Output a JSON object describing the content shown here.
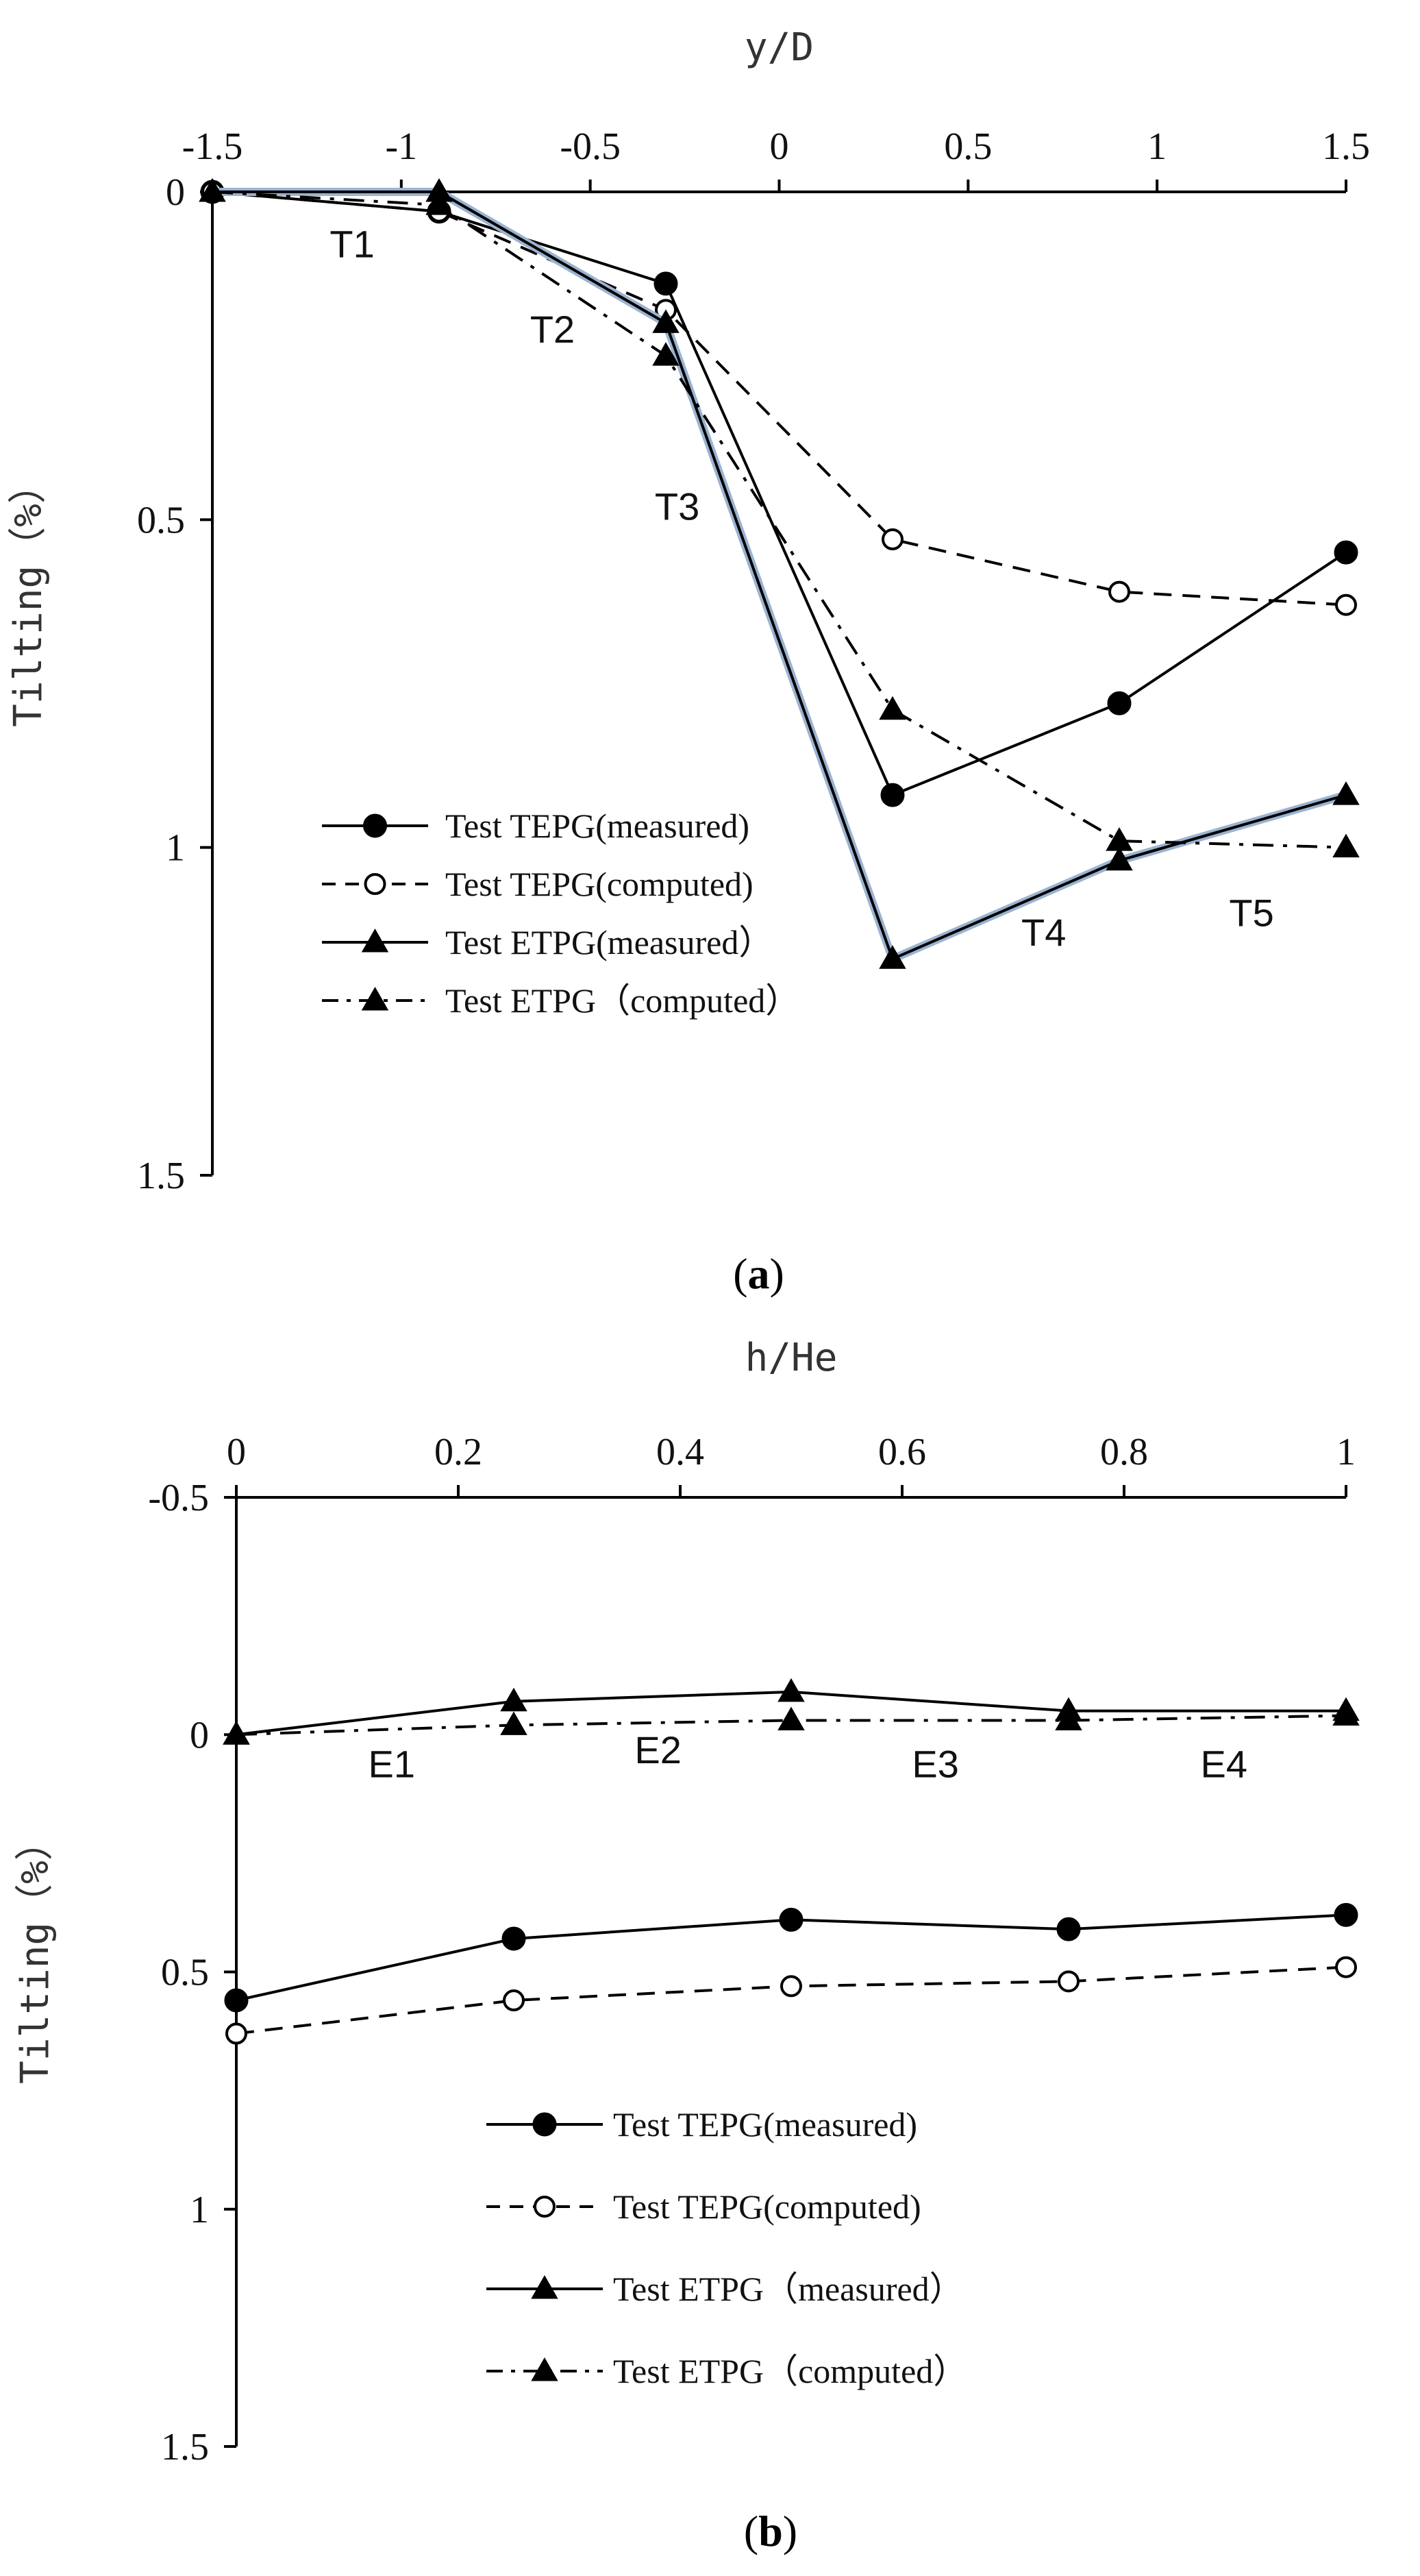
{
  "chart_data": [
    {
      "panel": "a",
      "panel_label": {
        "open": "(",
        "letter": "a",
        "close": ")"
      },
      "type": "line",
      "xlabel": "y/D",
      "ylabel": "Tilting（%）",
      "xlim": [
        -1.5,
        1.5
      ],
      "ylim": [
        0,
        1.5
      ],
      "y_inverted": true,
      "x_axis_position": "top",
      "grid": false,
      "x_ticks": [
        -1.5,
        -1,
        -0.5,
        0,
        0.5,
        1,
        1.5
      ],
      "x_tick_labels": [
        "-1.5",
        "-1",
        "-0.5",
        "0",
        "0.5",
        "1",
        "1.5"
      ],
      "y_ticks": [
        0,
        0.5,
        1,
        1.5
      ],
      "y_tick_labels": [
        "0",
        "0.5",
        "1",
        "1.5"
      ],
      "series": [
        {
          "name": "Test TEPG(measured)",
          "style": "solid",
          "marker": "filled-circle",
          "color": "#000000",
          "x": [
            -1.5,
            -0.9,
            -0.3,
            0.3,
            0.9,
            1.5
          ],
          "y": [
            0.0,
            0.03,
            0.14,
            0.92,
            0.78,
            0.55
          ]
        },
        {
          "name": "Test TEPG(computed)",
          "style": "dashed",
          "marker": "open-circle",
          "color": "#000000",
          "x": [
            -1.5,
            -0.9,
            -0.3,
            0.3,
            0.9,
            1.5
          ],
          "y": [
            0.0,
            0.03,
            0.18,
            0.53,
            0.61,
            0.63
          ]
        },
        {
          "name": "Test ETPG(measured）",
          "style": "solid",
          "marker": "filled-triangle",
          "color": "#000000",
          "x": [
            -1.5,
            -0.9,
            -0.3,
            0.3,
            0.9,
            1.5
          ],
          "y": [
            0.0,
            0.0,
            0.2,
            1.17,
            1.02,
            0.92
          ]
        },
        {
          "name": "Test ETPG（computed）",
          "style": "dashdot",
          "marker": "filled-triangle",
          "color": "#000000",
          "x": [
            -1.5,
            -0.9,
            -0.3,
            0.3,
            0.9,
            1.5
          ],
          "y": [
            0.0,
            0.02,
            0.25,
            0.79,
            0.99,
            1.0
          ]
        }
      ],
      "annotations": [
        {
          "text": "T1",
          "x": -1.13,
          "y": 0.1
        },
        {
          "text": "T2",
          "x": -0.6,
          "y": 0.23
        },
        {
          "text": "T3",
          "x": -0.27,
          "y": 0.5
        },
        {
          "text": "T4",
          "x": 0.7,
          "y": 1.15
        },
        {
          "text": "T5",
          "x": 1.25,
          "y": 1.12
        }
      ],
      "legend_position": "lower-left"
    },
    {
      "panel": "b",
      "panel_label": {
        "open": "(",
        "letter": "b",
        "close": ")"
      },
      "type": "line",
      "xlabel": "h/He",
      "ylabel": "Tilting（%）",
      "xlim": [
        0,
        1
      ],
      "ylim": [
        -0.5,
        1.5
      ],
      "y_inverted": true,
      "x_axis_position": "top",
      "grid": false,
      "x_ticks": [
        0,
        0.2,
        0.4,
        0.6,
        0.8,
        1
      ],
      "x_tick_labels": [
        "0",
        "0.2",
        "0.4",
        "0.6",
        "0.8",
        "1"
      ],
      "y_ticks": [
        -0.5,
        0,
        0.5,
        1,
        1.5
      ],
      "y_tick_labels": [
        "-0.5",
        "0",
        "0.5",
        "1",
        "1.5"
      ],
      "series": [
        {
          "name": "Test TEPG(measured)",
          "style": "solid",
          "marker": "filled-circle",
          "color": "#000000",
          "x": [
            0,
            0.25,
            0.5,
            0.75,
            1.0
          ],
          "y": [
            0.56,
            0.43,
            0.39,
            0.41,
            0.38
          ]
        },
        {
          "name": "Test TEPG(computed)",
          "style": "dashed",
          "marker": "open-circle",
          "color": "#000000",
          "x": [
            0,
            0.25,
            0.5,
            0.75,
            1.0
          ],
          "y": [
            0.63,
            0.56,
            0.53,
            0.52,
            0.49
          ]
        },
        {
          "name": "Test ETPG（measured）",
          "style": "solid",
          "marker": "filled-triangle",
          "color": "#000000",
          "x": [
            0,
            0.25,
            0.5,
            0.75,
            1.0
          ],
          "y": [
            0.0,
            -0.07,
            -0.09,
            -0.05,
            -0.05
          ]
        },
        {
          "name": "Test ETPG（computed）",
          "style": "dashdot",
          "marker": "filled-triangle",
          "color": "#000000",
          "x": [
            0,
            0.25,
            0.5,
            0.75,
            1.0
          ],
          "y": [
            0.0,
            -0.02,
            -0.03,
            -0.03,
            -0.04
          ]
        }
      ],
      "annotations": [
        {
          "text": "E1",
          "x": 0.14,
          "y": 0.09
        },
        {
          "text": "E2",
          "x": 0.38,
          "y": 0.06
        },
        {
          "text": "E3",
          "x": 0.63,
          "y": 0.09
        },
        {
          "text": "E4",
          "x": 0.89,
          "y": 0.09
        }
      ],
      "legend_position": "lower-center"
    }
  ]
}
